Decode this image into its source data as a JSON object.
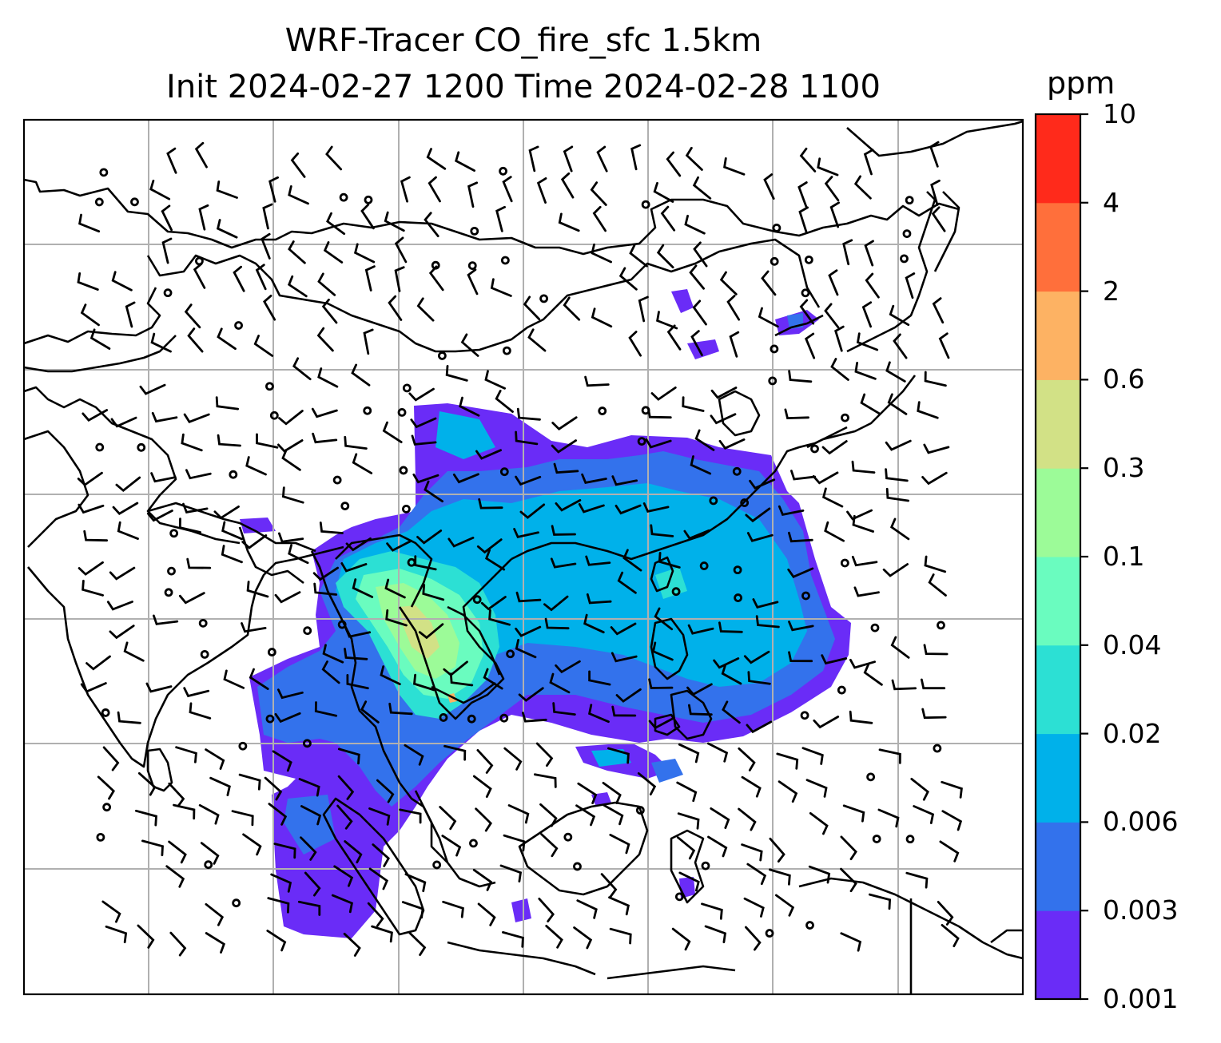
{
  "title_line1": "WRF-Tracer CO_fire_sfc 1.5km",
  "title_line2": "Init 2024-02-27 1200 Time 2024-02-28 1100",
  "colorbar": {
    "unit": "ppm",
    "levels": [
      "0.001",
      "0.003",
      "0.006",
      "0.02",
      "0.04",
      "0.1",
      "0.3",
      "0.6",
      "2",
      "4",
      "10"
    ],
    "colors": [
      "#6a2cf7",
      "#3372ec",
      "#00b1ea",
      "#2ce0d4",
      "#6afcbf",
      "#9cfb98",
      "#d2e186",
      "#fdb263",
      "#ff6f3b",
      "#ff2a1b"
    ]
  },
  "map": {
    "gridlines": true,
    "wind_barbs": true,
    "coastlines_color": "#000000",
    "grid_color": "#b0b0b0"
  }
}
